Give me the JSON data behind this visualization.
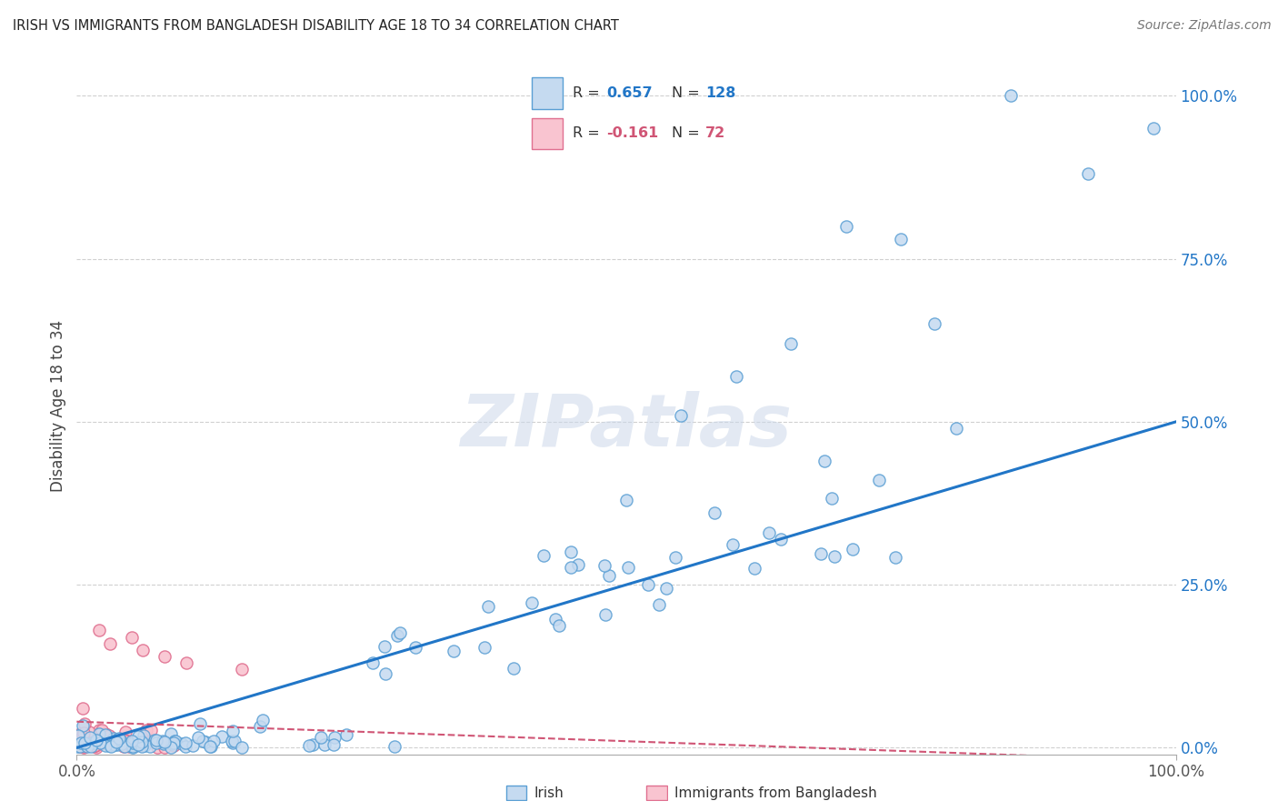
{
  "title": "IRISH VS IMMIGRANTS FROM BANGLADESH DISABILITY AGE 18 TO 34 CORRELATION CHART",
  "source": "Source: ZipAtlas.com",
  "ylabel": "Disability Age 18 to 34",
  "xlim": [
    0,
    1.0
  ],
  "ylim": [
    -0.01,
    1.06
  ],
  "ytick_labels": [
    "0.0%",
    "25.0%",
    "50.0%",
    "75.0%",
    "100.0%"
  ],
  "ytick_positions": [
    0.0,
    0.25,
    0.5,
    0.75,
    1.0
  ],
  "legend_label1": "Irish",
  "legend_label2": "Immigrants from Bangladesh",
  "R1": 0.657,
  "N1": 128,
  "R2": -0.161,
  "N2": 72,
  "color_irish_face": "#c5daf0",
  "color_irish_edge": "#5a9fd4",
  "color_line_irish": "#2176c7",
  "color_bangladesh_face": "#f9c4d0",
  "color_bangladesh_edge": "#e07090",
  "color_line_bangladesh": "#d05575",
  "watermark": "ZIPatlas",
  "background_color": "#ffffff",
  "grid_color": "#d0d0d0",
  "irish_line_x0": 0.0,
  "irish_line_y0": 0.0,
  "irish_line_x1": 1.0,
  "irish_line_y1": 0.5,
  "bang_line_x0": 0.0,
  "bang_line_y0": 0.04,
  "bang_line_x1": 1.0,
  "bang_line_y1": -0.02,
  "seed_irish": 77,
  "seed_bang": 55
}
